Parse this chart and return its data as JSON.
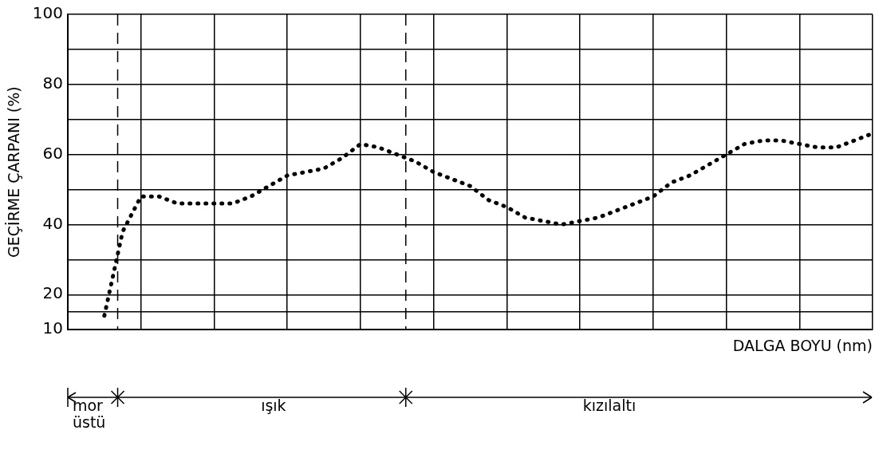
{
  "chart_data": {
    "type": "line",
    "xlabel": "DALGA BOYU (nm)",
    "ylabel": "GEÇİRME ÇARPANI (%)",
    "categories": [
      null,
      null,
      null,
      null,
      null,
      null,
      null,
      null,
      null,
      null,
      null,
      null,
      null,
      null,
      null,
      null,
      null,
      null,
      null,
      null,
      null,
      null,
      null,
      null,
      null,
      null,
      null,
      null,
      null,
      null,
      null,
      null,
      null,
      null,
      null,
      null,
      null,
      null,
      null,
      null,
      null,
      null,
      null,
      null,
      null
    ],
    "series": [
      {
        "color": "#000000",
        "values": [
          null,
          null,
          14,
          38,
          48,
          48,
          46,
          46,
          46,
          46,
          48,
          51,
          54,
          55,
          56,
          59,
          63,
          62,
          60,
          58,
          55,
          53,
          51,
          47,
          45,
          42,
          41,
          40,
          41,
          42,
          44,
          46,
          48,
          52,
          54,
          57,
          60,
          63,
          64,
          64,
          63,
          62,
          62,
          64,
          66
        ]
      }
    ],
    "ylim": [
      10,
      100
    ],
    "yticks": [
      10,
      {
        "value": 15,
        "label": null
      },
      20,
      {
        "value": 30,
        "label": null
      },
      40,
      {
        "value": 50,
        "label": null
      },
      60,
      {
        "value": 70,
        "label": null
      },
      80,
      {
        "value": 90,
        "label": null
      },
      100
    ],
    "grid": true,
    "tick_labels": "y",
    "marker": "none",
    "line_style": "dotted",
    "annotations": [
      "mor üstü",
      "ışık",
      "kızılaltı"
    ]
  }
}
